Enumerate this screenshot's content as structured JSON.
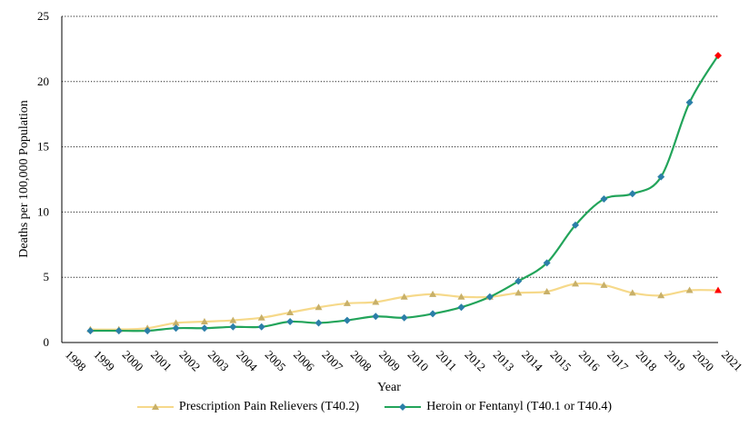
{
  "chart_data": {
    "type": "line",
    "xlabel": "Year",
    "ylabel": "Deaths per 100,000 Population",
    "ylim": [
      0,
      25
    ],
    "yticks": [
      "0",
      "5",
      "10",
      "15",
      "20",
      "25"
    ],
    "x": [
      "1998",
      "1999",
      "2000",
      "2001",
      "2002",
      "2003",
      "2004",
      "2005",
      "2006",
      "2007",
      "2008",
      "2009",
      "2010",
      "2011",
      "2012",
      "2013",
      "2014",
      "2015",
      "2016",
      "2017",
      "2018",
      "2019",
      "2020",
      "2021"
    ],
    "grid": "horizontal dotted",
    "legend_position": "bottom",
    "series": [
      {
        "name": "Prescription Pain Relievers (T40.2)",
        "color": "#f6d98a",
        "marker": "triangle",
        "marker_color": "#c8b069",
        "last_marker_color": "#ff0000",
        "last_marker": "triangle",
        "values": [
          null,
          1.0,
          1.0,
          1.1,
          1.5,
          1.6,
          1.7,
          1.9,
          2.3,
          2.7,
          3.0,
          3.1,
          3.5,
          3.7,
          3.5,
          3.5,
          3.8,
          3.9,
          4.5,
          4.4,
          3.8,
          3.6,
          4.0,
          4.0
        ]
      },
      {
        "name": "Heroin or Fentanyl (T40.1 or T40.4)",
        "color": "#22a45a",
        "marker": "diamond",
        "marker_color": "#2b7fa8",
        "last_marker_color": "#ff0000",
        "last_marker": "diamond",
        "values": [
          null,
          0.9,
          0.9,
          0.9,
          1.1,
          1.1,
          1.2,
          1.2,
          1.6,
          1.5,
          1.7,
          2.0,
          1.9,
          2.2,
          2.7,
          3.5,
          4.7,
          6.1,
          9.0,
          11.0,
          11.4,
          12.7,
          18.4,
          22.0
        ]
      }
    ]
  }
}
